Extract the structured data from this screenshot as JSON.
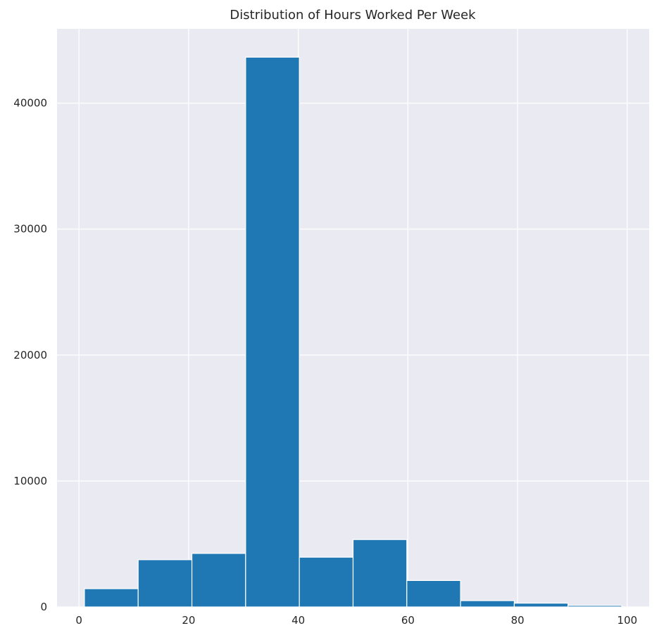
{
  "chart_data": {
    "type": "bar",
    "title": "Distribution of Hours Worked Per Week",
    "xlabel": "",
    "ylabel": "",
    "bins": [
      {
        "start": 1.0,
        "end": 10.8,
        "value": 1450
      },
      {
        "start": 10.8,
        "end": 20.6,
        "value": 3750
      },
      {
        "start": 20.6,
        "end": 30.4,
        "value": 4250
      },
      {
        "start": 30.4,
        "end": 40.2,
        "value": 43650
      },
      {
        "start": 40.2,
        "end": 50.0,
        "value": 3950
      },
      {
        "start": 50.0,
        "end": 59.8,
        "value": 5350
      },
      {
        "start": 59.8,
        "end": 69.6,
        "value": 2100
      },
      {
        "start": 69.6,
        "end": 79.4,
        "value": 500
      },
      {
        "start": 79.4,
        "end": 89.2,
        "value": 300
      },
      {
        "start": 89.2,
        "end": 99.0,
        "value": 120
      }
    ],
    "xlim": [
      -4,
      104
    ],
    "ylim": [
      0,
      45900
    ],
    "xticks": [
      0,
      20,
      40,
      60,
      80,
      100
    ],
    "xtick_labels": [
      "0",
      "20",
      "40",
      "60",
      "80",
      "100"
    ],
    "yticks": [
      0,
      10000,
      20000,
      30000,
      40000
    ],
    "ytick_labels": [
      "0",
      "10000",
      "20000",
      "30000",
      "40000"
    ],
    "grid": true,
    "legend": "none",
    "colors": {
      "bar": "#1f77b4",
      "background": "#eaeaf2",
      "grid": "#ffffff",
      "text": "#262626"
    }
  }
}
